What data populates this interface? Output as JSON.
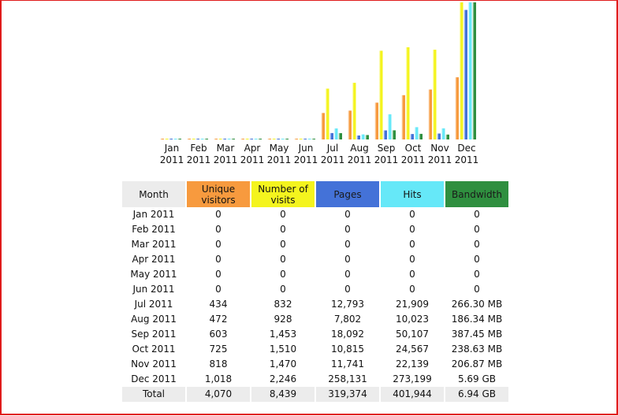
{
  "colors": {
    "unique": "#f79a3e",
    "visits": "#f4f41e",
    "pages": "#4472d8",
    "hits": "#66e8f8",
    "bandwidth": "#2f8f3f",
    "header_gray": "#ececec",
    "border": "#e01b1b"
  },
  "chart_data": {
    "type": "bar",
    "categories": [
      {
        "month": "Jan",
        "year": "2011"
      },
      {
        "month": "Feb",
        "year": "2011"
      },
      {
        "month": "Mar",
        "year": "2011"
      },
      {
        "month": "Apr",
        "year": "2011"
      },
      {
        "month": "May",
        "year": "2011"
      },
      {
        "month": "Jun",
        "year": "2011"
      },
      {
        "month": "Jul",
        "year": "2011"
      },
      {
        "month": "Aug",
        "year": "2011"
      },
      {
        "month": "Sep",
        "year": "2011"
      },
      {
        "month": "Oct",
        "year": "2011"
      },
      {
        "month": "Nov",
        "year": "2011"
      },
      {
        "month": "Dec",
        "year": "2011"
      }
    ],
    "series": [
      {
        "name": "Unique visitors",
        "key": "unique",
        "values": [
          0,
          0,
          0,
          0,
          0,
          0,
          434,
          472,
          603,
          725,
          818,
          1018
        ]
      },
      {
        "name": "Number of visits",
        "key": "visits",
        "values": [
          0,
          0,
          0,
          0,
          0,
          0,
          832,
          928,
          1453,
          1510,
          1470,
          2246
        ]
      },
      {
        "name": "Pages",
        "key": "pages",
        "values": [
          0,
          0,
          0,
          0,
          0,
          0,
          12793,
          7802,
          18092,
          10815,
          11741,
          258131
        ]
      },
      {
        "name": "Hits",
        "key": "hits",
        "values": [
          0,
          0,
          0,
          0,
          0,
          0,
          21909,
          10023,
          50107,
          24567,
          22139,
          273199
        ]
      },
      {
        "name": "Bandwidth (MB)",
        "key": "bandwidth",
        "values": [
          0,
          0,
          0,
          0,
          0,
          0,
          266.3,
          186.34,
          387.45,
          238.63,
          206.87,
          5826.56
        ]
      }
    ],
    "scale_groups": [
      {
        "keys": [
          "unique",
          "visits"
        ],
        "max": 2246
      },
      {
        "keys": [
          "pages",
          "hits"
        ],
        "max": 273199
      },
      {
        "keys": [
          "bandwidth"
        ],
        "max": 5826.56
      }
    ]
  },
  "table": {
    "headers": {
      "month": "Month",
      "unique": "Unique visitors",
      "visits": "Number of visits",
      "pages": "Pages",
      "hits": "Hits",
      "bandwidth": "Bandwidth"
    },
    "rows": [
      {
        "month": "Jan 2011",
        "unique": "0",
        "visits": "0",
        "pages": "0",
        "hits": "0",
        "bandwidth": "0"
      },
      {
        "month": "Feb 2011",
        "unique": "0",
        "visits": "0",
        "pages": "0",
        "hits": "0",
        "bandwidth": "0"
      },
      {
        "month": "Mar 2011",
        "unique": "0",
        "visits": "0",
        "pages": "0",
        "hits": "0",
        "bandwidth": "0"
      },
      {
        "month": "Apr 2011",
        "unique": "0",
        "visits": "0",
        "pages": "0",
        "hits": "0",
        "bandwidth": "0"
      },
      {
        "month": "May 2011",
        "unique": "0",
        "visits": "0",
        "pages": "0",
        "hits": "0",
        "bandwidth": "0"
      },
      {
        "month": "Jun 2011",
        "unique": "0",
        "visits": "0",
        "pages": "0",
        "hits": "0",
        "bandwidth": "0"
      },
      {
        "month": "Jul 2011",
        "unique": "434",
        "visits": "832",
        "pages": "12,793",
        "hits": "21,909",
        "bandwidth": "266.30 MB"
      },
      {
        "month": "Aug 2011",
        "unique": "472",
        "visits": "928",
        "pages": "7,802",
        "hits": "10,023",
        "bandwidth": "186.34 MB"
      },
      {
        "month": "Sep 2011",
        "unique": "603",
        "visits": "1,453",
        "pages": "18,092",
        "hits": "50,107",
        "bandwidth": "387.45 MB"
      },
      {
        "month": "Oct 2011",
        "unique": "725",
        "visits": "1,510",
        "pages": "10,815",
        "hits": "24,567",
        "bandwidth": "238.63 MB"
      },
      {
        "month": "Nov 2011",
        "unique": "818",
        "visits": "1,470",
        "pages": "11,741",
        "hits": "22,139",
        "bandwidth": "206.87 MB"
      },
      {
        "month": "Dec 2011",
        "unique": "1,018",
        "visits": "2,246",
        "pages": "258,131",
        "hits": "273,199",
        "bandwidth": "5.69 GB"
      }
    ],
    "total": {
      "month": "Total",
      "unique": "4,070",
      "visits": "8,439",
      "pages": "319,374",
      "hits": "401,944",
      "bandwidth": "6.94 GB"
    }
  }
}
